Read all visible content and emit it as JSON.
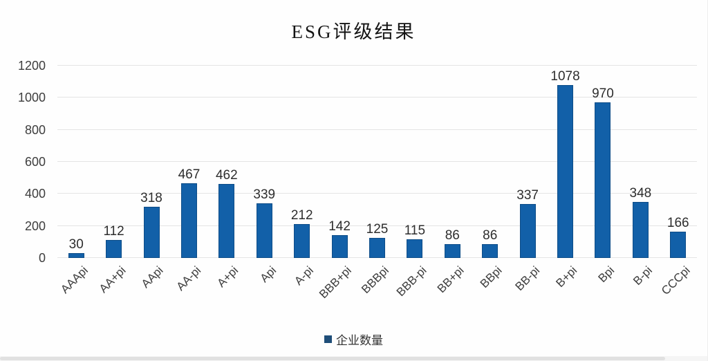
{
  "chart_data": {
    "type": "bar",
    "title": "ESG评级结果",
    "categories": [
      "AAApi",
      "AA+pi",
      "AApi",
      "AA-pi",
      "A+pi",
      "Api",
      "A-pi",
      "BBB+pi",
      "BBBpi",
      "BBB-pi",
      "BB+pi",
      "BBpi",
      "BB-pi",
      "B+pi",
      "Bpi",
      "B-pi",
      "CCCpi"
    ],
    "series": [
      {
        "name": "企业数量",
        "values": [
          30,
          112,
          318,
          467,
          462,
          339,
          212,
          142,
          125,
          115,
          86,
          86,
          337,
          1078,
          970,
          348,
          166
        ]
      }
    ],
    "xlabel": "",
    "ylabel": "",
    "ylim": [
      0,
      1200
    ],
    "yticks": [
      0,
      200,
      400,
      600,
      800,
      1000,
      1200
    ],
    "grid": true,
    "legend_position": "bottom",
    "data_labels": true,
    "bar_color": "#1260a8",
    "bar_border_color": "#0d4c87",
    "legend_marker_color": "#1f4e79",
    "gridline_color": "#e4e4e4",
    "label_rotation_deg": -45
  }
}
